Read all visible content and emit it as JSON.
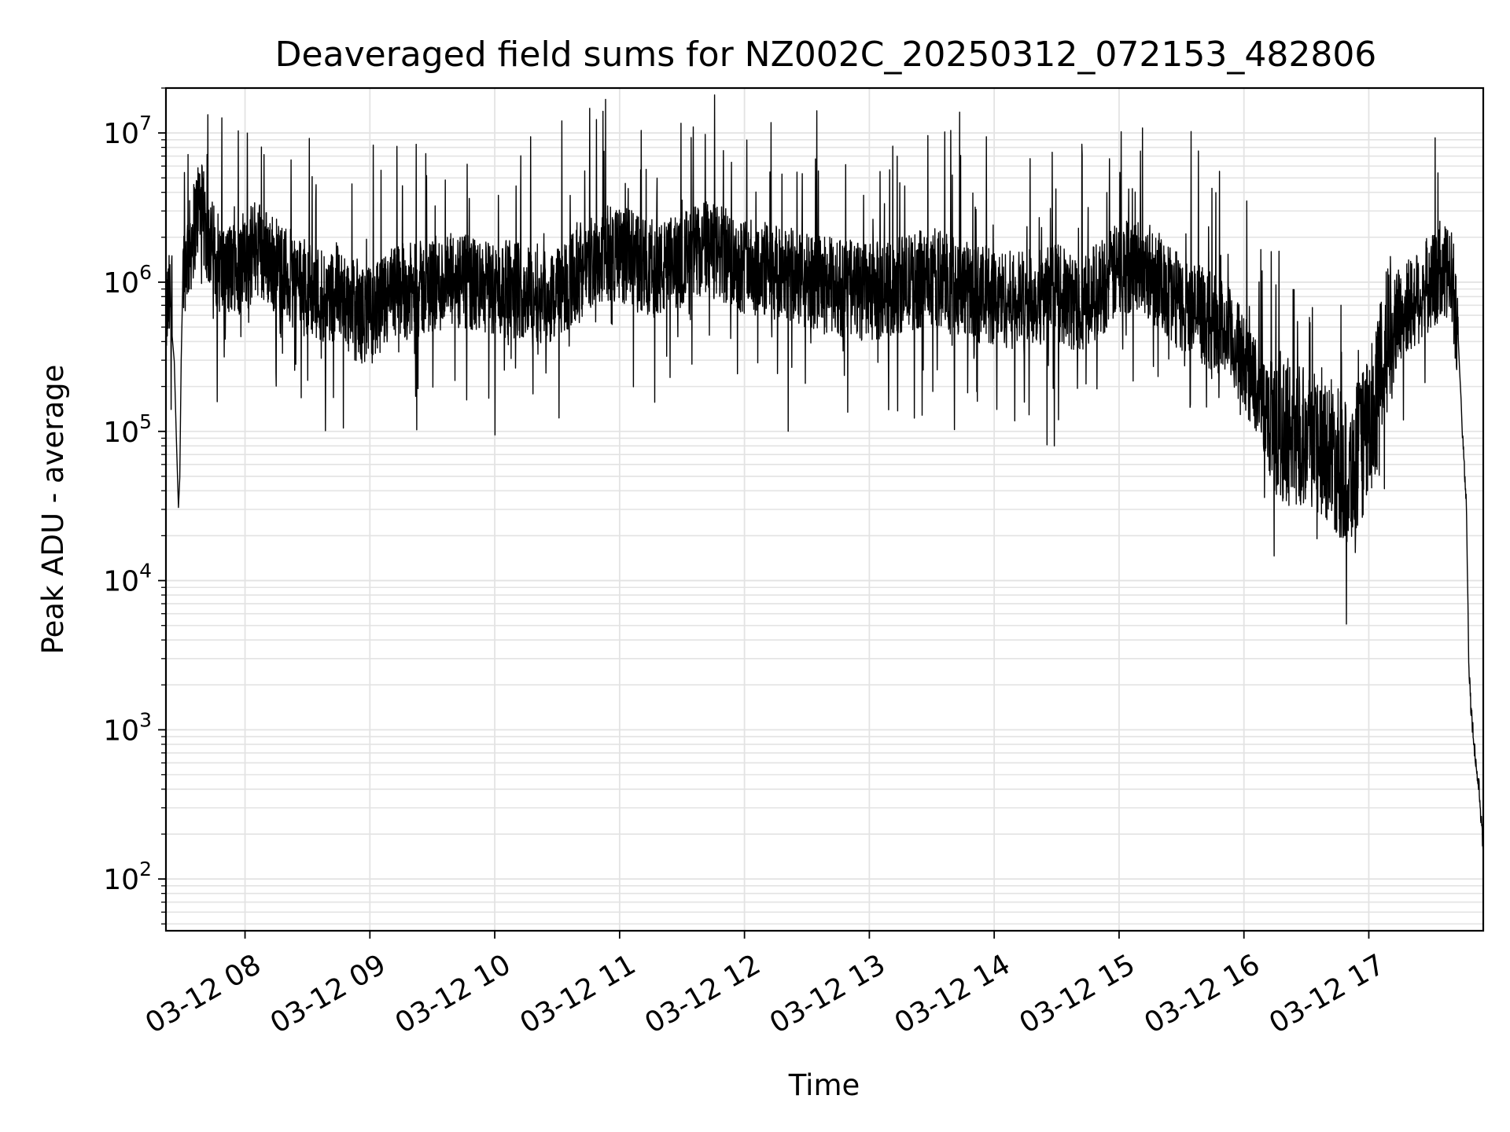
{
  "chart_data": {
    "type": "line",
    "title": "Deaveraged field sums for NZ002C_20250312_072153_482806",
    "xlabel": "Time",
    "ylabel": "Peak ADU - average",
    "x_scale": "time",
    "y_scale": "log",
    "xlim": [
      "2025-03-12 07:22",
      "2025-03-12 17:55"
    ],
    "ylim": [
      45,
      20000000
    ],
    "grid": true,
    "line_color": "#000000",
    "grid_color": "#e3e3e3",
    "x_ticks": [
      "03-12 08",
      "03-12 09",
      "03-12 10",
      "03-12 11",
      "03-12 12",
      "03-12 13",
      "03-12 14",
      "03-12 15",
      "03-12 16",
      "03-12 17"
    ],
    "y_ticks": [
      {
        "base": "10",
        "exp": "2",
        "value": 100
      },
      {
        "base": "10",
        "exp": "3",
        "value": 1000
      },
      {
        "base": "10",
        "exp": "4",
        "value": 10000
      },
      {
        "base": "10",
        "exp": "5",
        "value": 100000
      },
      {
        "base": "10",
        "exp": "6",
        "value": 1000000
      },
      {
        "base": "10",
        "exp": "7",
        "value": 10000000
      }
    ],
    "series": [
      {
        "x": [
          "07:22",
          "07:25",
          "07:28",
          "07:30",
          "07:34",
          "07:38",
          "07:42",
          "07:46",
          "07:50",
          "07:55",
          "08:00",
          "08:05",
          "08:10",
          "08:15",
          "08:20",
          "08:25",
          "08:30",
          "08:35",
          "08:40",
          "08:45",
          "08:50",
          "08:55",
          "09:00",
          "09:05",
          "09:10",
          "09:15",
          "09:20",
          "09:30",
          "09:40",
          "09:50",
          "10:00",
          "10:10",
          "10:20",
          "10:30",
          "10:40",
          "10:50",
          "11:00",
          "11:10",
          "11:20",
          "11:30",
          "11:40",
          "11:50",
          "12:00",
          "12:10",
          "12:20",
          "12:30",
          "12:40",
          "12:50",
          "13:00",
          "13:10",
          "13:20",
          "13:30",
          "13:40",
          "13:50",
          "14:00",
          "14:10",
          "14:20",
          "14:30",
          "14:40",
          "14:50",
          "15:00",
          "15:10",
          "15:20",
          "15:30",
          "15:40",
          "15:50",
          "16:00",
          "16:10",
          "16:20",
          "16:30",
          "16:40",
          "16:50",
          "17:00",
          "17:10",
          "17:20",
          "17:30",
          "17:35",
          "17:40",
          "17:43",
          "17:45",
          "17:47",
          "17:48",
          "17:49",
          "17:50",
          "17:51",
          "17:52",
          "17:53",
          "17:54",
          "17:55"
        ],
        "y": [
          600000,
          900000,
          30000,
          1200000,
          1800000,
          3500000,
          2000000,
          1500000,
          1100000,
          1300000,
          1200000,
          1800000,
          1500000,
          1300000,
          1100000,
          1000000,
          900000,
          850000,
          800000,
          900000,
          700000,
          600000,
          600000,
          650000,
          800000,
          900000,
          850000,
          950000,
          1000000,
          950000,
          900000,
          900000,
          850000,
          800000,
          1200000,
          1500000,
          1600000,
          1300000,
          1200000,
          1400000,
          1700000,
          1500000,
          1300000,
          1200000,
          1100000,
          1000000,
          950000,
          900000,
          850000,
          900000,
          1000000,
          1100000,
          1000000,
          850000,
          800000,
          750000,
          800000,
          850000,
          700000,
          900000,
          1200000,
          1400000,
          1000000,
          700000,
          600000,
          500000,
          300000,
          150000,
          100000,
          100000,
          80000,
          50000,
          100000,
          500000,
          700000,
          1000000,
          1100000,
          1100000,
          400000,
          100000,
          30000,
          3000,
          1500,
          1000,
          700,
          500,
          400,
          250,
          150
        ]
      }
    ]
  }
}
